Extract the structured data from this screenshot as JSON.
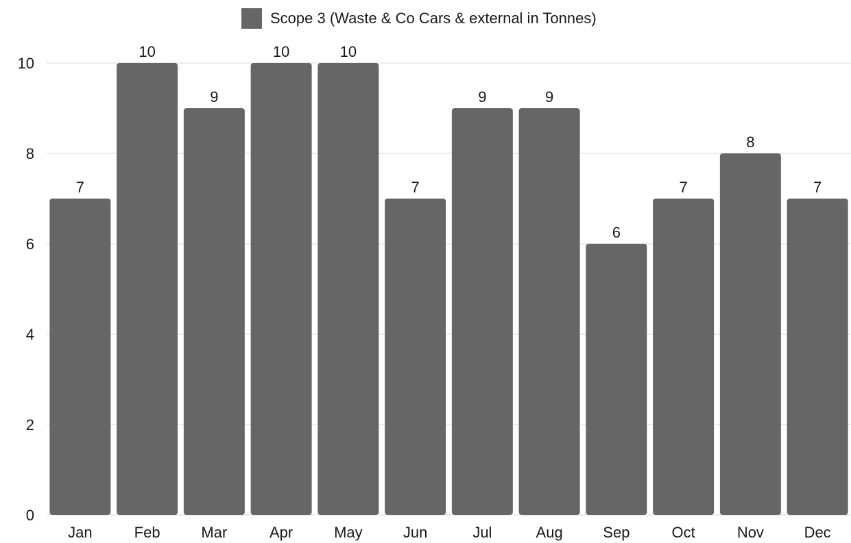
{
  "chart_data": {
    "type": "bar",
    "title": "",
    "xlabel": "",
    "ylabel": "",
    "categories": [
      "Jan",
      "Feb",
      "Mar",
      "Apr",
      "May",
      "Jun",
      "Jul",
      "Aug",
      "Sep",
      "Oct",
      "Nov",
      "Dec"
    ],
    "series": [
      {
        "name": "Scope 3 (Waste & Co Cars & external in Tonnes)",
        "values": [
          7,
          10,
          9,
          10,
          10,
          7,
          9,
          9,
          6,
          7,
          8,
          7
        ],
        "color": "#676566"
      }
    ],
    "data_labels": [
      "7",
      "10",
      "9",
      "10",
      "10",
      "7",
      "9",
      "9",
      "6",
      "7",
      "8",
      "7"
    ],
    "ylim": [
      0,
      10
    ],
    "yticks": [
      0,
      2,
      4,
      6,
      8,
      10
    ],
    "ytick_labels": [
      "0",
      "2",
      "4",
      "6",
      "8",
      "10"
    ],
    "grid": true,
    "gridline_color": "#d9d9d9",
    "legend_position": "top-center"
  }
}
